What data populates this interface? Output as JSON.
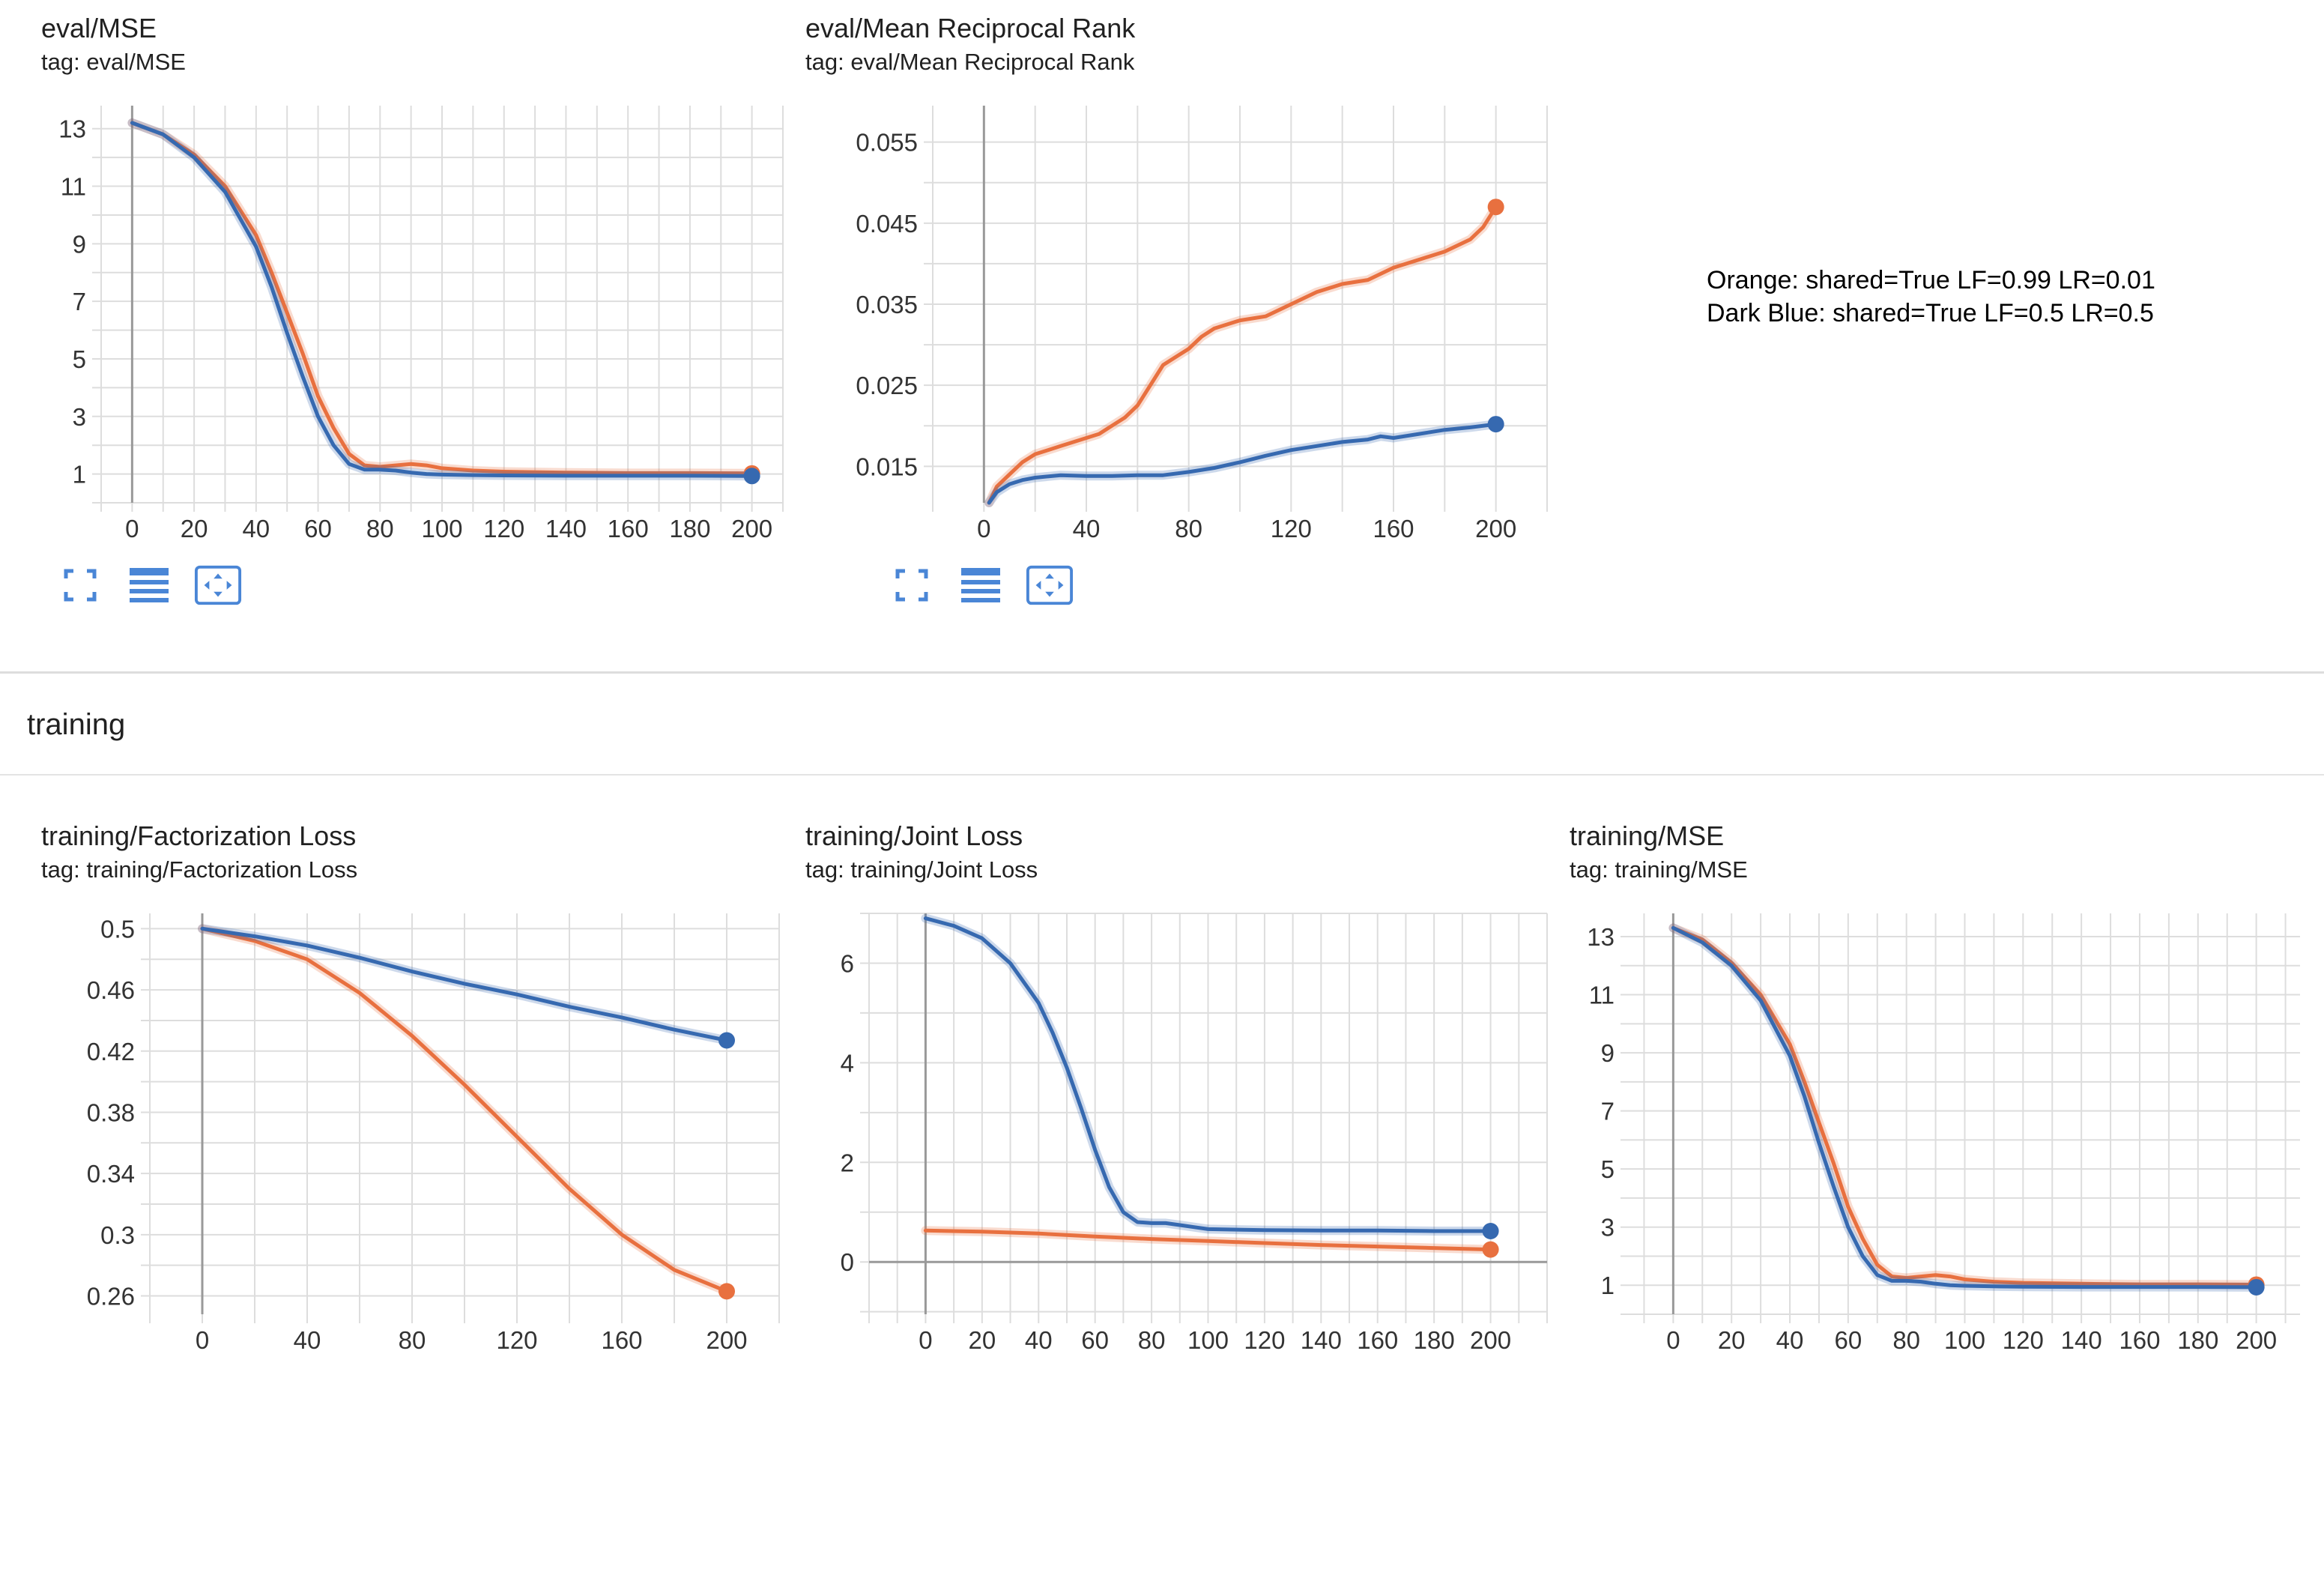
{
  "section_header": "training",
  "legend_note": {
    "orange": "Orange: shared=True LF=0.99 LR=0.01",
    "blue": "Dark Blue: shared=True LF=0.5 LR=0.5"
  },
  "colors": {
    "orange": "#e8703f",
    "blue": "#3669b0",
    "grid": "#dddddd",
    "axis": "#999999"
  },
  "toolbar_icons": [
    "fullscreen-icon",
    "data-table-icon",
    "fit-domain-icon"
  ],
  "chart_data": [
    {
      "id": "eval_mse",
      "type": "line",
      "title": "eval/MSE",
      "tag": "tag: eval/MSE",
      "xlim": [
        -10,
        210
      ],
      "ylim": [
        0,
        13.8
      ],
      "xticks": [
        0,
        20,
        40,
        60,
        80,
        100,
        120,
        140,
        160,
        180,
        200
      ],
      "yticks": [
        1,
        3,
        5,
        7,
        9,
        11,
        13
      ],
      "ytick_labels": [
        "1",
        "3",
        "5",
        "7",
        "9",
        "11",
        "13"
      ],
      "series": [
        {
          "color": "orange",
          "x": [
            0,
            10,
            20,
            30,
            40,
            45,
            50,
            55,
            60,
            65,
            70,
            75,
            80,
            85,
            90,
            95,
            100,
            110,
            120,
            140,
            160,
            180,
            200
          ],
          "y": [
            13.2,
            12.8,
            12.1,
            11.0,
            9.3,
            8.0,
            6.6,
            5.2,
            3.7,
            2.6,
            1.7,
            1.3,
            1.25,
            1.3,
            1.35,
            1.3,
            1.2,
            1.12,
            1.08,
            1.05,
            1.03,
            1.03,
            1.02
          ]
        },
        {
          "color": "blue",
          "x": [
            0,
            10,
            20,
            30,
            40,
            45,
            50,
            55,
            60,
            65,
            70,
            75,
            80,
            85,
            90,
            95,
            100,
            110,
            120,
            140,
            160,
            180,
            200
          ],
          "y": [
            13.2,
            12.8,
            12.0,
            10.8,
            8.9,
            7.5,
            5.9,
            4.4,
            3.0,
            2.0,
            1.35,
            1.15,
            1.15,
            1.12,
            1.05,
            1.0,
            0.98,
            0.96,
            0.95,
            0.94,
            0.94,
            0.94,
            0.93
          ]
        }
      ]
    },
    {
      "id": "eval_mrr",
      "type": "line",
      "title": "eval/Mean Reciprocal Rank",
      "tag": "tag: eval/Mean Reciprocal Rank",
      "xlim": [
        -20,
        220
      ],
      "ylim": [
        0.0105,
        0.0595
      ],
      "xticks": [
        0,
        40,
        80,
        120,
        160,
        200
      ],
      "yticks": [
        0.015,
        0.025,
        0.035,
        0.045,
        0.055
      ],
      "ytick_labels": [
        "0.015",
        "0.025",
        "0.035",
        "0.045",
        "0.055"
      ],
      "series": [
        {
          "color": "orange",
          "x": [
            2,
            5,
            10,
            15,
            20,
            25,
            30,
            35,
            40,
            45,
            50,
            55,
            60,
            65,
            70,
            75,
            80,
            85,
            90,
            100,
            110,
            120,
            130,
            140,
            150,
            160,
            170,
            180,
            190,
            195,
            200
          ],
          "y": [
            0.0105,
            0.0125,
            0.014,
            0.0155,
            0.0165,
            0.017,
            0.0175,
            0.018,
            0.0185,
            0.019,
            0.02,
            0.021,
            0.0225,
            0.025,
            0.0275,
            0.0285,
            0.0295,
            0.031,
            0.032,
            0.033,
            0.0335,
            0.035,
            0.0365,
            0.0375,
            0.038,
            0.0395,
            0.0405,
            0.0415,
            0.043,
            0.0445,
            0.047
          ]
        },
        {
          "color": "blue",
          "x": [
            2,
            5,
            10,
            15,
            20,
            30,
            40,
            50,
            60,
            70,
            80,
            90,
            100,
            110,
            120,
            130,
            140,
            150,
            155,
            160,
            170,
            180,
            190,
            200
          ],
          "y": [
            0.0105,
            0.0118,
            0.0128,
            0.0133,
            0.0136,
            0.0139,
            0.0138,
            0.0138,
            0.0139,
            0.0139,
            0.0143,
            0.0148,
            0.0155,
            0.0163,
            0.017,
            0.0175,
            0.018,
            0.0183,
            0.0187,
            0.0185,
            0.019,
            0.0195,
            0.0198,
            0.0202
          ]
        }
      ]
    },
    {
      "id": "training_factorization_loss",
      "type": "line",
      "title": "training/Factorization Loss",
      "tag": "tag: training/Factorization Loss",
      "xlim": [
        -20,
        220
      ],
      "ylim": [
        0.248,
        0.51
      ],
      "xticks": [
        0,
        40,
        80,
        120,
        160,
        200
      ],
      "yticks": [
        0.26,
        0.3,
        0.34,
        0.38,
        0.42,
        0.46,
        0.5
      ],
      "ytick_labels": [
        "0.26",
        "0.3",
        "0.34",
        "0.38",
        "0.42",
        "0.46",
        "0.5"
      ],
      "series": [
        {
          "color": "orange",
          "x": [
            0,
            20,
            40,
            60,
            80,
            100,
            120,
            140,
            160,
            180,
            200
          ],
          "y": [
            0.5,
            0.492,
            0.48,
            0.458,
            0.43,
            0.398,
            0.364,
            0.33,
            0.3,
            0.277,
            0.263
          ]
        },
        {
          "color": "blue",
          "x": [
            0,
            20,
            40,
            60,
            80,
            100,
            120,
            140,
            160,
            180,
            200
          ],
          "y": [
            0.5,
            0.495,
            0.489,
            0.481,
            0.472,
            0.464,
            0.457,
            0.449,
            0.442,
            0.434,
            0.427
          ]
        }
      ]
    },
    {
      "id": "training_joint_loss",
      "type": "line",
      "title": "training/Joint Loss",
      "tag": "tag: training/Joint Loss",
      "xlim": [
        -20,
        220
      ],
      "ylim": [
        -1.05,
        7.0
      ],
      "xticks": [
        0,
        20,
        40,
        60,
        80,
        100,
        120,
        140,
        160,
        180,
        200
      ],
      "yticks": [
        0,
        2,
        4,
        6
      ],
      "ytick_labels": [
        "0",
        "2",
        "4",
        "6"
      ],
      "series": [
        {
          "color": "orange",
          "x": [
            0,
            20,
            40,
            60,
            80,
            100,
            120,
            140,
            160,
            180,
            200
          ],
          "y": [
            0.63,
            0.61,
            0.57,
            0.51,
            0.46,
            0.42,
            0.38,
            0.34,
            0.31,
            0.28,
            0.25
          ]
        },
        {
          "color": "blue",
          "x": [
            0,
            10,
            20,
            30,
            40,
            45,
            50,
            55,
            60,
            65,
            70,
            75,
            80,
            85,
            90,
            95,
            100,
            120,
            140,
            160,
            180,
            200
          ],
          "y": [
            6.9,
            6.75,
            6.5,
            6.0,
            5.2,
            4.6,
            3.9,
            3.1,
            2.25,
            1.5,
            1.0,
            0.8,
            0.78,
            0.78,
            0.74,
            0.7,
            0.66,
            0.64,
            0.63,
            0.63,
            0.62,
            0.62
          ]
        }
      ]
    },
    {
      "id": "training_mse",
      "type": "line",
      "title": "training/MSE",
      "tag": "tag: training/MSE",
      "xlim": [
        -15,
        215
      ],
      "ylim": [
        0,
        13.8
      ],
      "xticks": [
        0,
        20,
        40,
        60,
        80,
        100,
        120,
        140,
        160,
        180,
        200
      ],
      "yticks": [
        1,
        3,
        5,
        7,
        9,
        11,
        13
      ],
      "ytick_labels": [
        "1",
        "3",
        "5",
        "7",
        "9",
        "11",
        "13"
      ],
      "series": [
        {
          "color": "orange",
          "x": [
            0,
            10,
            20,
            30,
            40,
            45,
            50,
            55,
            60,
            65,
            70,
            75,
            80,
            85,
            90,
            95,
            100,
            110,
            120,
            140,
            160,
            180,
            200
          ],
          "y": [
            13.3,
            12.9,
            12.1,
            11.0,
            9.3,
            8.0,
            6.6,
            5.2,
            3.7,
            2.6,
            1.7,
            1.3,
            1.25,
            1.3,
            1.35,
            1.3,
            1.2,
            1.12,
            1.08,
            1.05,
            1.03,
            1.03,
            1.02
          ]
        },
        {
          "color": "blue",
          "x": [
            0,
            10,
            20,
            30,
            40,
            45,
            50,
            55,
            60,
            65,
            70,
            75,
            80,
            85,
            90,
            95,
            100,
            110,
            120,
            140,
            160,
            180,
            200
          ],
          "y": [
            13.3,
            12.8,
            12.0,
            10.8,
            8.9,
            7.5,
            5.9,
            4.4,
            3.0,
            2.0,
            1.35,
            1.15,
            1.15,
            1.12,
            1.05,
            1.0,
            0.98,
            0.96,
            0.95,
            0.94,
            0.94,
            0.94,
            0.93
          ]
        }
      ]
    }
  ]
}
